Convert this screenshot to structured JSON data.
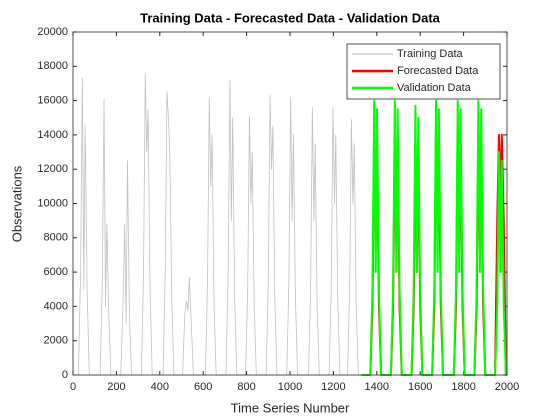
{
  "chart_data": {
    "type": "line",
    "title": "Training Data - Forecasted Data - Validation Data",
    "xlabel": "Time Series Number",
    "ylabel": "Observations",
    "xlim": [
      0,
      2000
    ],
    "ylim": [
      0,
      20000
    ],
    "xticks": [
      0,
      200,
      400,
      600,
      800,
      1000,
      1200,
      1400,
      1600,
      1800,
      2000
    ],
    "yticks": [
      0,
      2000,
      4000,
      6000,
      8000,
      10000,
      12000,
      14000,
      16000,
      18000,
      20000
    ],
    "legend": "upper right",
    "series": [
      {
        "name": "Training Data",
        "color": "#c0c0c0",
        "width": 0.8,
        "x": [
          0,
          25,
          35,
          43,
          50,
          56,
          65,
          75,
          125,
          135,
          143,
          150,
          156,
          165,
          175,
          220,
          230,
          238,
          245,
          251,
          260,
          270,
          315,
          325,
          333,
          340,
          346,
          355,
          365,
          415,
          425,
          433,
          440,
          446,
          455,
          465,
          505,
          515,
          523,
          530,
          536,
          545,
          555,
          610,
          620,
          628,
          635,
          641,
          650,
          660,
          705,
          715,
          723,
          730,
          736,
          745,
          755,
          795,
          805,
          813,
          820,
          826,
          835,
          845,
          890,
          900,
          908,
          915,
          921,
          930,
          940,
          985,
          995,
          1003,
          1010,
          1016,
          1025,
          1035,
          1085,
          1095,
          1103,
          1110,
          1116,
          1125,
          1135,
          1180,
          1190,
          1198,
          1205,
          1211,
          1220,
          1230,
          1265,
          1275,
          1283,
          1290,
          1296,
          1305,
          1315,
          1330
        ],
        "values": [
          0,
          0,
          6000,
          17300,
          5000,
          14600,
          5000,
          0,
          0,
          5500,
          16100,
          4000,
          8800,
          3500,
          0,
          0,
          4000,
          8800,
          3000,
          12500,
          3500,
          0,
          0,
          6000,
          17600,
          13000,
          15500,
          5000,
          0,
          0,
          6000,
          16500,
          15000,
          13000,
          4500,
          0,
          0,
          3500,
          4300,
          3800,
          5700,
          3000,
          0,
          0,
          5500,
          16200,
          11000,
          14000,
          4000,
          0,
          0,
          6000,
          17200,
          9000,
          15000,
          4500,
          0,
          0,
          5000,
          15100,
          10000,
          13000,
          4000,
          0,
          0,
          5500,
          16300,
          12000,
          14500,
          4500,
          0,
          0,
          5500,
          16200,
          9000,
          14000,
          4500,
          0,
          0,
          5000,
          15600,
          9000,
          13500,
          4000,
          0,
          0,
          5000,
          15600,
          10000,
          14000,
          4500,
          0,
          0,
          5000,
          14900,
          10000,
          13500,
          4000,
          0,
          0
        ]
      },
      {
        "name": "Forecasted Data",
        "color": "#ff0000",
        "width": 2,
        "x": [
          1330,
          1370,
          1380,
          1388,
          1395,
          1401,
          1410,
          1420,
          1465,
          1475,
          1483,
          1490,
          1496,
          1505,
          1515,
          1560,
          1570,
          1578,
          1585,
          1591,
          1600,
          1610,
          1655,
          1665,
          1673,
          1680,
          1686,
          1695,
          1705,
          1755,
          1765,
          1773,
          1780,
          1786,
          1795,
          1805,
          1850,
          1860,
          1868,
          1875,
          1881,
          1890,
          1900,
          1945,
          1955,
          1963,
          1970,
          1976,
          1985,
          1995,
          2000
        ],
        "values": [
          0,
          0,
          4000,
          13500,
          8000,
          13000,
          4000,
          0,
          0,
          4000,
          14000,
          8000,
          13000,
          4000,
          0,
          0,
          4000,
          13000,
          7000,
          12500,
          4000,
          0,
          0,
          4000,
          14500,
          8000,
          13000,
          4000,
          0,
          0,
          4000,
          14000,
          8000,
          13500,
          4000,
          0,
          0,
          4000,
          14000,
          8000,
          13000,
          4000,
          0,
          0,
          9000,
          14000,
          10000,
          14000,
          9000,
          0,
          0
        ]
      },
      {
        "name": "Validation Data",
        "color": "#00ff00",
        "width": 2,
        "x": [
          1330,
          1370,
          1380,
          1388,
          1395,
          1401,
          1410,
          1420,
          1465,
          1475,
          1483,
          1490,
          1496,
          1505,
          1515,
          1560,
          1570,
          1578,
          1585,
          1591,
          1600,
          1610,
          1655,
          1665,
          1673,
          1680,
          1686,
          1695,
          1705,
          1755,
          1765,
          1773,
          1780,
          1786,
          1795,
          1805,
          1850,
          1860,
          1868,
          1875,
          1881,
          1890,
          1900,
          1945,
          1955,
          1963,
          1970,
          1976,
          1985,
          1995,
          2000
        ],
        "values": [
          0,
          0,
          5000,
          16000,
          6000,
          15500,
          5000,
          0,
          0,
          5000,
          16000,
          6000,
          15500,
          5000,
          0,
          0,
          5000,
          15700,
          6000,
          15000,
          5000,
          0,
          0,
          5000,
          16000,
          6000,
          15500,
          5000,
          0,
          0,
          5000,
          16000,
          6000,
          15500,
          5000,
          0,
          0,
          5000,
          16000,
          6000,
          15500,
          5000,
          0,
          0,
          4000,
          13000,
          6000,
          12500,
          4000,
          0,
          0
        ]
      }
    ]
  }
}
